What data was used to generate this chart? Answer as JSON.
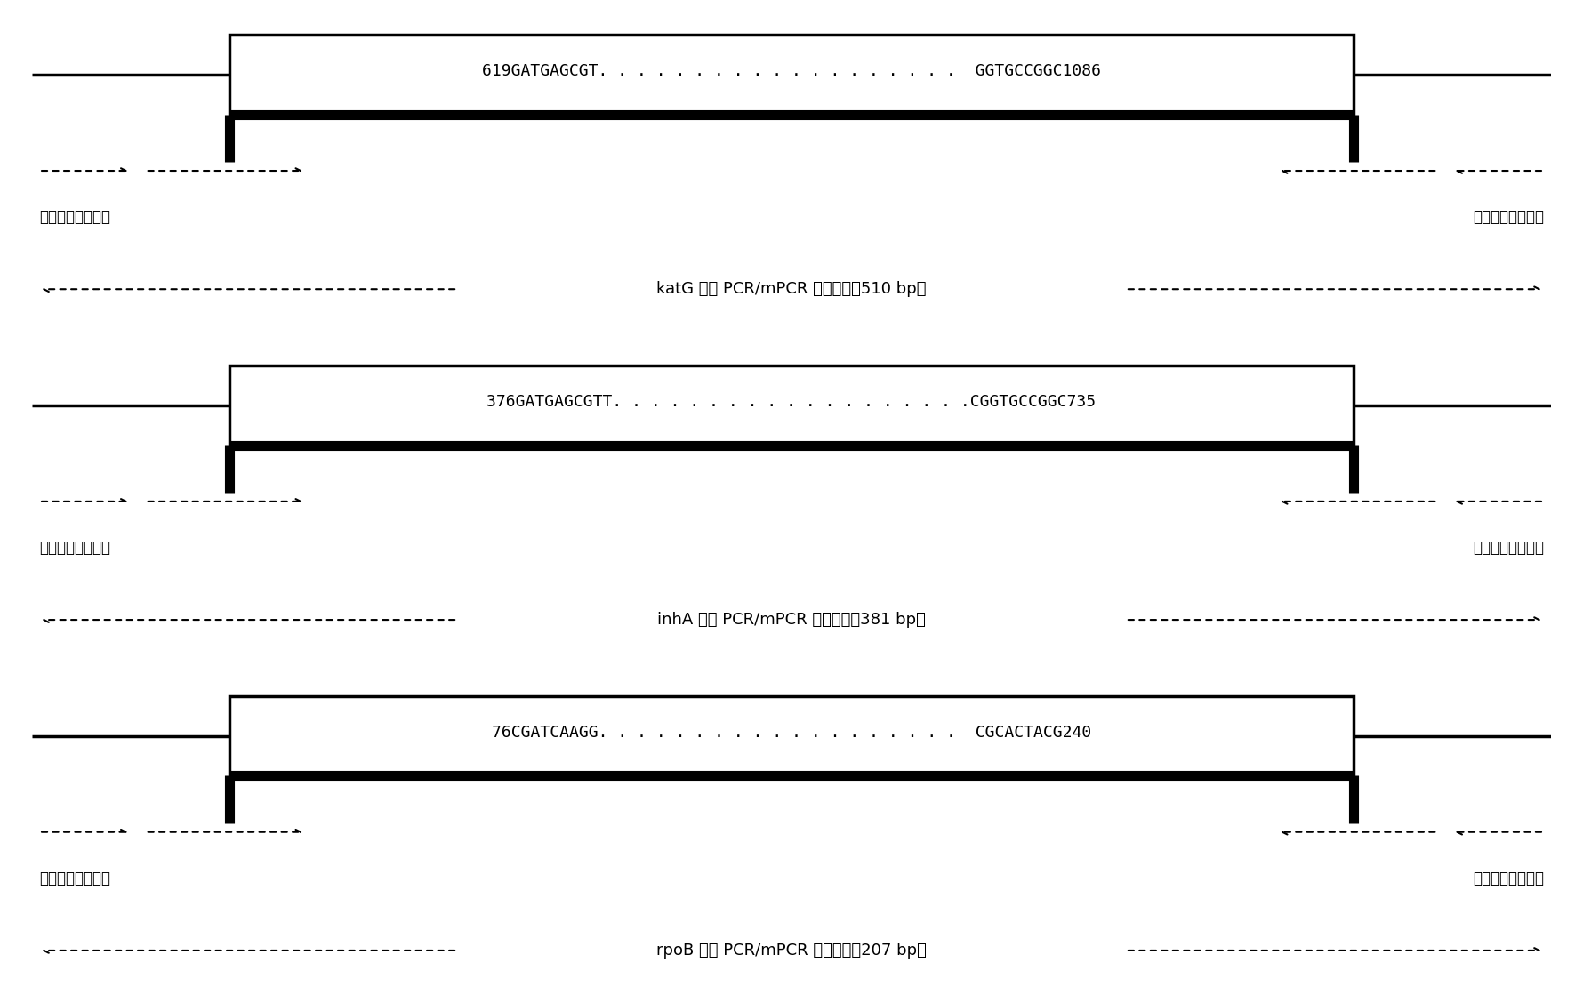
{
  "panels": [
    {
      "gene": "katG",
      "seq_text": "619GATGAGCGT. . . . . . . . . . . . . . . . . . .  GGTGCCGGC1086",
      "amplicon_label": "katG 基因 PCR/mPCR 扩增区域（510 bp）",
      "left_label": "上游引物设计区域",
      "right_label": "下游引物设计区域"
    },
    {
      "gene": "inhA",
      "seq_text": "376GATGAGCGTT. . . . . . . . . . . . . . . . . . .CGGTGCCGGC735",
      "amplicon_label": "inhA 基因 PCR/mPCR 扩增区域（381 bp）",
      "left_label": "上游引物设计区域",
      "right_label": "下游引物设计区域"
    },
    {
      "gene": "rpoB",
      "seq_text": "76CGATCAAGG. . . . . . . . . . . . . . . . . . .  CGCACTACG240",
      "amplicon_label": "rpoB 基因 PCR/mPCR 扩增区域（207 bp）",
      "left_label": "上游引物设计区域",
      "right_label": "下游引物设计区域"
    }
  ],
  "bg_color": "#ffffff",
  "box_color": "#000000",
  "line_color": "#000000",
  "text_color": "#000000",
  "seq_font_size": 13,
  "label_font_size": 12,
  "amplicon_font_size": 13,
  "fig_width": 17.8,
  "fig_height": 11.1
}
